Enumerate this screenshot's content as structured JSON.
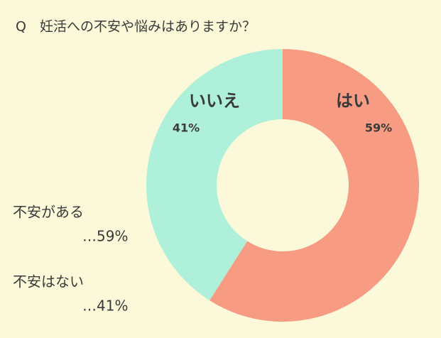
{
  "chart_data": {
    "type": "donut",
    "title": "Q　妊活への不安や悩みはありますか？",
    "categories": [
      "はい",
      "いいえ"
    ],
    "values": [
      59,
      41
    ],
    "value_labels": [
      "59%",
      "41%"
    ],
    "colors": [
      "#f79b82",
      "#aef0d9"
    ],
    "legend_labels": [
      "不安がある",
      "不安はない"
    ],
    "legend_value_labels": [
      "…59%",
      "…41%"
    ]
  }
}
